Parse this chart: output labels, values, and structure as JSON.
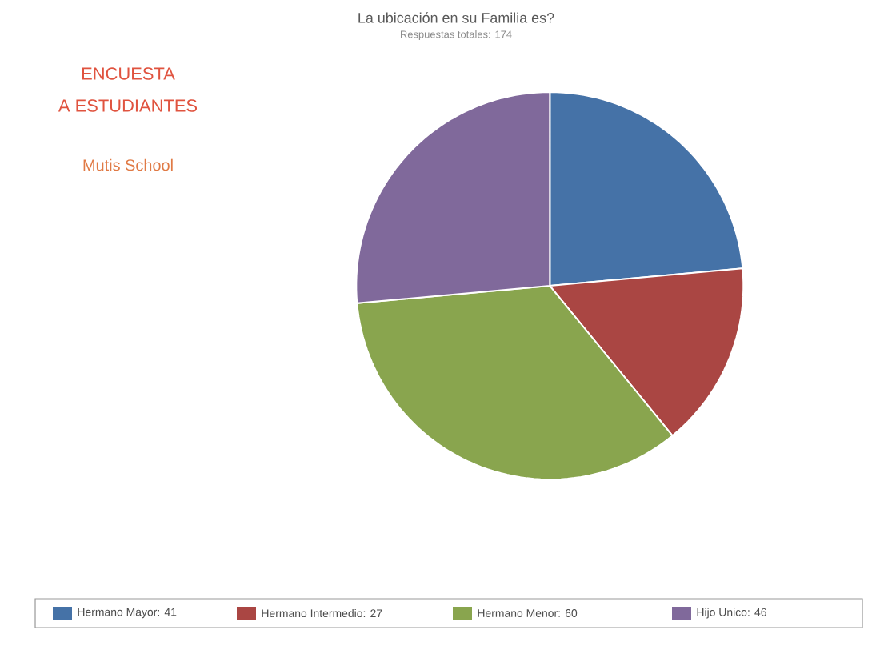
{
  "chart_data": {
    "type": "pie",
    "title": "La ubicación en su Familia es?",
    "subtitle": "Respuestas totales: 174",
    "annotations": [
      "ENCUESTA",
      "A ESTUDIANTES",
      "Mutis School"
    ],
    "categories": [
      "Hermano Mayor: 41",
      "Hermano Intermedio: 27",
      "Hermano Menor: 60",
      "Hijo Unico: 46"
    ],
    "values": [
      41,
      27,
      60,
      46
    ],
    "colors": [
      "#4572a7",
      "#aa4643",
      "#89a54e",
      "#80699b"
    ],
    "legend": "bottom"
  }
}
